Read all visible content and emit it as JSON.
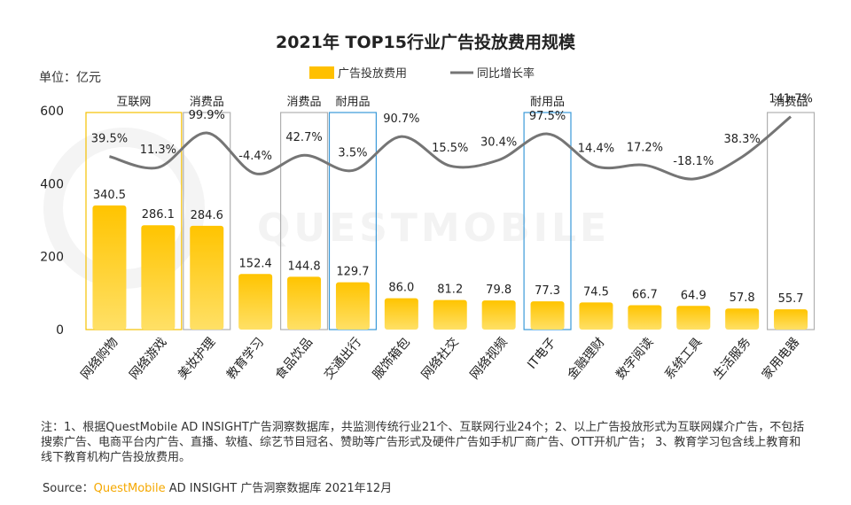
{
  "chart_data": {
    "type": "bar+line",
    "title": "2021年 TOP15行业广告投放费用规模",
    "unit_label": "单位：亿元",
    "ylim": [
      0,
      600
    ],
    "yticks": [
      0,
      200,
      400,
      600
    ],
    "legend": {
      "bar": "广告投放费用",
      "line": "同比增长率"
    },
    "categories": [
      "网络购物",
      "网络游戏",
      "美妆护理",
      "教育学习",
      "食品饮品",
      "交通出行",
      "服饰箱包",
      "网络社交",
      "网络视频",
      "IT电子",
      "金融理财",
      "数字阅读",
      "系统工具",
      "生活服务",
      "家用电器"
    ],
    "series": [
      {
        "name": "广告投放费用",
        "values": [
          340.5,
          286.1,
          284.6,
          152.4,
          144.8,
          129.7,
          86.0,
          81.2,
          79.8,
          77.3,
          74.5,
          66.7,
          64.9,
          57.8,
          55.7
        ],
        "labels": [
          "340.5",
          "286.1",
          "284.6",
          "152.4",
          "144.8",
          "129.7",
          "86.0",
          "81.2",
          "79.8",
          "77.3",
          "74.5",
          "66.7",
          "64.9",
          "57.8",
          "55.7"
        ]
      },
      {
        "name": "同比增长率",
        "values": [
          39.5,
          11.3,
          99.9,
          -4.4,
          42.7,
          3.5,
          90.7,
          15.5,
          30.4,
          97.5,
          14.4,
          17.2,
          -18.1,
          38.3,
          141.7
        ],
        "labels": [
          "39.5%",
          "11.3%",
          "99.9%",
          "-4.4%",
          "42.7%",
          "3.5%",
          "90.7%",
          "15.5%",
          "30.4%",
          "97.5%",
          "14.4%",
          "17.2%",
          "-18.1%",
          "38.3%",
          "141.7%"
        ]
      }
    ],
    "groups": [
      {
        "label": "互联网",
        "from": 0,
        "to": 1,
        "color": "#f5c000"
      },
      {
        "label": "消费品",
        "from": 2,
        "to": 2,
        "color": "#b0b0b0"
      },
      {
        "label": "消费品",
        "from": 4,
        "to": 4,
        "color": "#b0b0b0"
      },
      {
        "label": "耐用品",
        "from": 5,
        "to": 5,
        "color": "#3a9ad9"
      },
      {
        "label": "耐用品",
        "from": 9,
        "to": 9,
        "color": "#3a9ad9"
      },
      {
        "label": "消费品",
        "from": 14,
        "to": 14,
        "color": "#b0b0b0"
      }
    ],
    "colors": {
      "bar": "#ffc000",
      "bar_light": "#ffdd55",
      "line": "#757575"
    }
  },
  "watermark": "QUESTMOBILE",
  "notes": "注：1、根据QuestMobile AD INSIGHT广告洞察数据库，共监测传统行业21个、互联网行业24个；2、以上广告投放形式为互联网媒介广告，不包括搜索广告、电商平台内广告、直播、软植、综艺节目冠名、赞助等广告形式及硬件广告如手机厂商广告、OTT开机广告； 3、教育学习包含线上教育和线下教育机构广告投放费用。",
  "source": {
    "prefix": "Source：",
    "brand": "QuestMobile",
    "rest": " AD INSIGHT 广告洞察数据库 2021年12月"
  }
}
